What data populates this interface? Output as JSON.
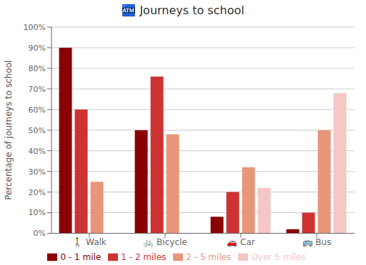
{
  "chart_data": {
    "type": "bar",
    "title": "🏧 Journeys to school",
    "ylabel": "Percentage of journeys to school",
    "categories": [
      "🚶 Walk",
      "🚲 Bicycle",
      "🚗 Car",
      "🚌 Bus"
    ],
    "series": [
      {
        "name": "0 - 1 mile",
        "color": "#8B0000",
        "values": [
          90,
          50,
          8,
          2
        ]
      },
      {
        "name": "1 - 2 miles",
        "color": "#CD3333",
        "values": [
          60,
          76,
          20,
          10
        ]
      },
      {
        "name": "2 - 5 miles",
        "color": "#E8967A",
        "values": [
          25,
          48,
          32,
          50
        ]
      },
      {
        "name": "Over 5 miles",
        "color": "#F5C6C6",
        "values": [
          0,
          0,
          22,
          68
        ]
      }
    ],
    "ylim": [
      0,
      100
    ],
    "yticks": [
      {
        "value": 0,
        "label": "0%"
      },
      {
        "value": 10,
        "label": "10%"
      },
      {
        "value": 20,
        "label": "20%"
      },
      {
        "value": 30,
        "label": "30%"
      },
      {
        "value": 40,
        "label": "40%"
      },
      {
        "value": 50,
        "label": "50%"
      },
      {
        "value": 60,
        "label": "60%"
      },
      {
        "value": 70,
        "label": "70%"
      },
      {
        "value": 80,
        "label": "80%"
      },
      {
        "value": 90,
        "label": "90%"
      },
      {
        "value": 100,
        "label": "100%"
      }
    ],
    "grid": true,
    "legend": "bottom"
  }
}
